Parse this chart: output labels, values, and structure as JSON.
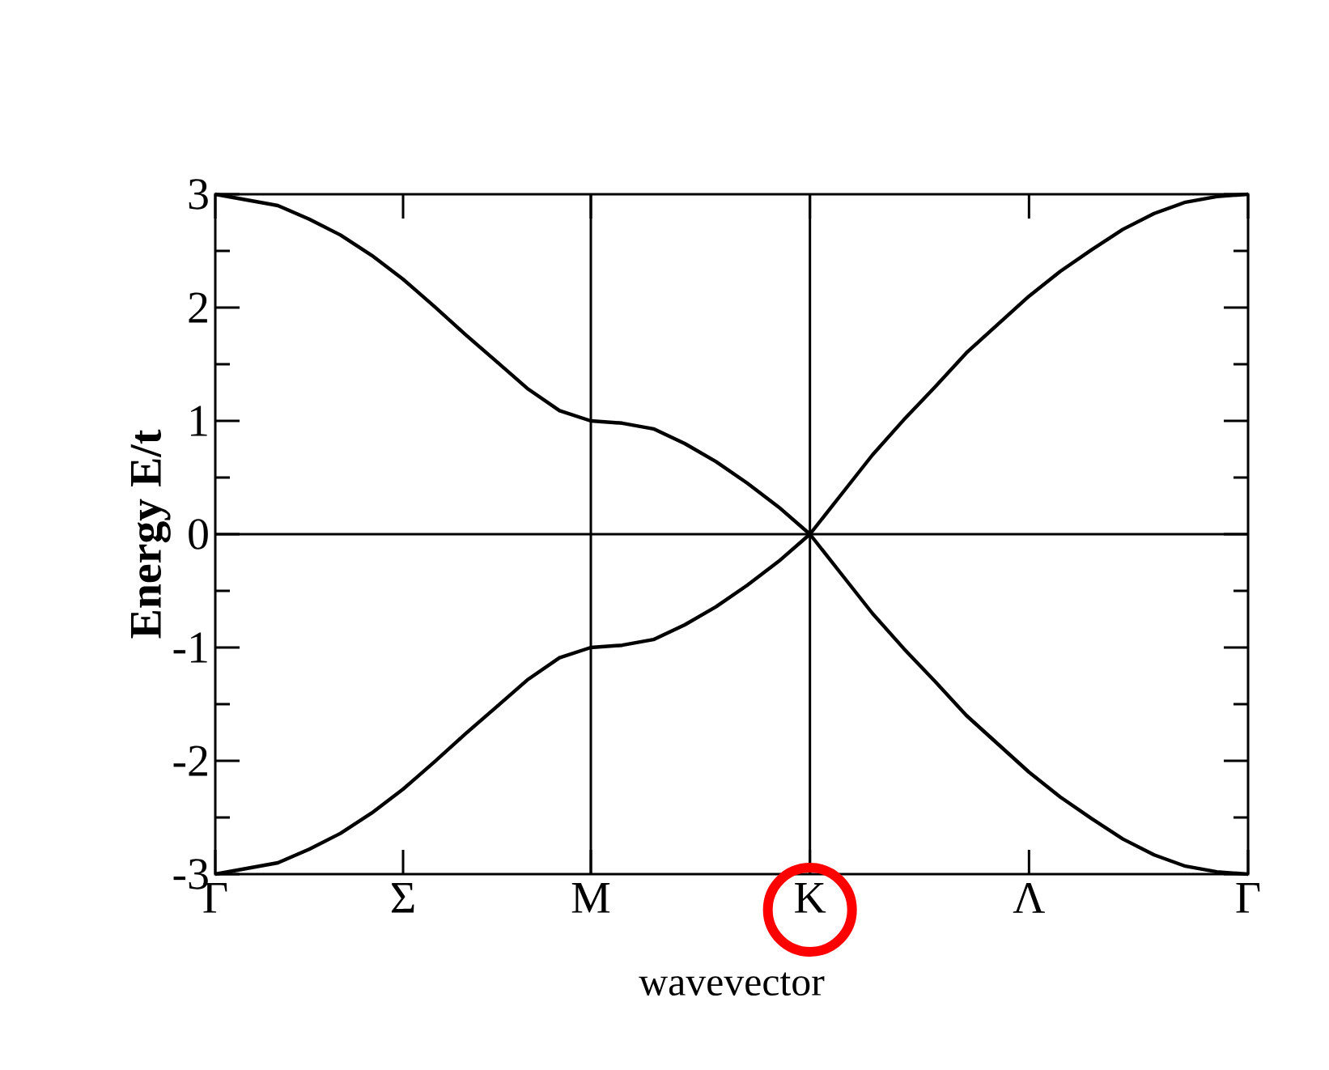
{
  "chart_data": {
    "type": "line",
    "xlabel": "wavevector",
    "ylabel": "Energy E/t",
    "categories": [
      "Γ",
      null,
      null,
      null,
      null,
      null,
      "Σ",
      null,
      null,
      null,
      null,
      null,
      "M",
      null,
      null,
      null,
      null,
      null,
      null,
      "K",
      null,
      null,
      null,
      null,
      null,
      null,
      "Λ",
      null,
      null,
      null,
      null,
      null,
      null,
      "Γ"
    ],
    "series": [
      {
        "color": "#000000",
        "values": [
          3,
          2.95,
          2.9,
          2.78,
          2.64,
          2.46,
          2.25,
          2.01,
          1.76,
          1.52,
          1.28,
          1.09,
          1.0,
          0.98,
          0.93,
          0.8,
          0.64,
          0.45,
          0.24,
          0,
          0.35,
          0.7,
          1.01,
          1.3,
          1.6,
          1.85,
          2.1,
          2.32,
          2.51,
          2.69,
          2.83,
          2.93,
          2.98,
          3
        ]
      },
      {
        "color": "#000000",
        "values": [
          -3,
          -2.95,
          -2.9,
          -2.78,
          -2.64,
          -2.46,
          -2.25,
          -2.01,
          -1.76,
          -1.52,
          -1.28,
          -1.09,
          -1.0,
          -0.98,
          -0.93,
          -0.8,
          -0.64,
          -0.45,
          -0.24,
          0,
          -0.35,
          -0.7,
          -1.01,
          -1.3,
          -1.6,
          -1.85,
          -2.1,
          -2.32,
          -2.51,
          -2.69,
          -2.83,
          -2.93,
          -2.98,
          -3
        ]
      }
    ],
    "ylim": [
      -3,
      3
    ],
    "yticks": [
      -3,
      {
        "value": -2.5,
        "label": null
      },
      -2,
      {
        "value": -1.5,
        "label": null
      },
      -1,
      {
        "value": -0.5,
        "label": null
      },
      0,
      {
        "value": 0.5,
        "label": null
      },
      1,
      {
        "value": 1.5,
        "label": null
      },
      2,
      {
        "value": 2.5,
        "label": null
      },
      3
    ],
    "ref_lines": [
      {
        "axis": "x",
        "value": "M"
      },
      {
        "axis": "x",
        "value": "K"
      },
      {
        "axis": "y",
        "value": 0
      }
    ],
    "grid": false
  }
}
